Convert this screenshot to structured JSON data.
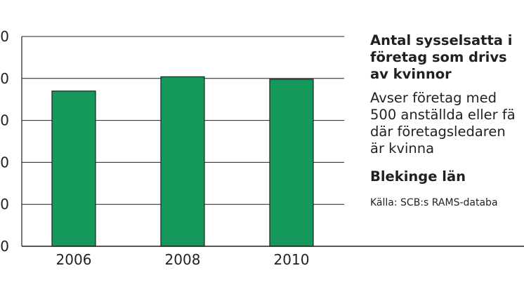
{
  "chart_data": {
    "type": "bar",
    "categories": [
      "2006",
      "2008",
      "2010"
    ],
    "values": [
      3700,
      4040,
      3980
    ],
    "ylim": [
      0,
      5000
    ],
    "ytick_values": [
      0,
      1000,
      2000,
      3000,
      4000,
      5000
    ],
    "ytick_labels": [
      "0",
      "00",
      "00",
      "00",
      "00",
      "00"
    ],
    "grid": true,
    "bar_color": "#14995a",
    "title": "",
    "xlabel": "",
    "ylabel": ""
  },
  "side_panel": {
    "title_lines": [
      "Antal sysselsatta i",
      "företag som drivs",
      "av kvinnor"
    ],
    "description_lines": [
      "Avser företag med",
      "500 anställda eller fä",
      "där företagsledaren",
      "är kvinna"
    ],
    "region": "Blekinge län",
    "source": "Källa: SCB:s RAMS-databa"
  }
}
